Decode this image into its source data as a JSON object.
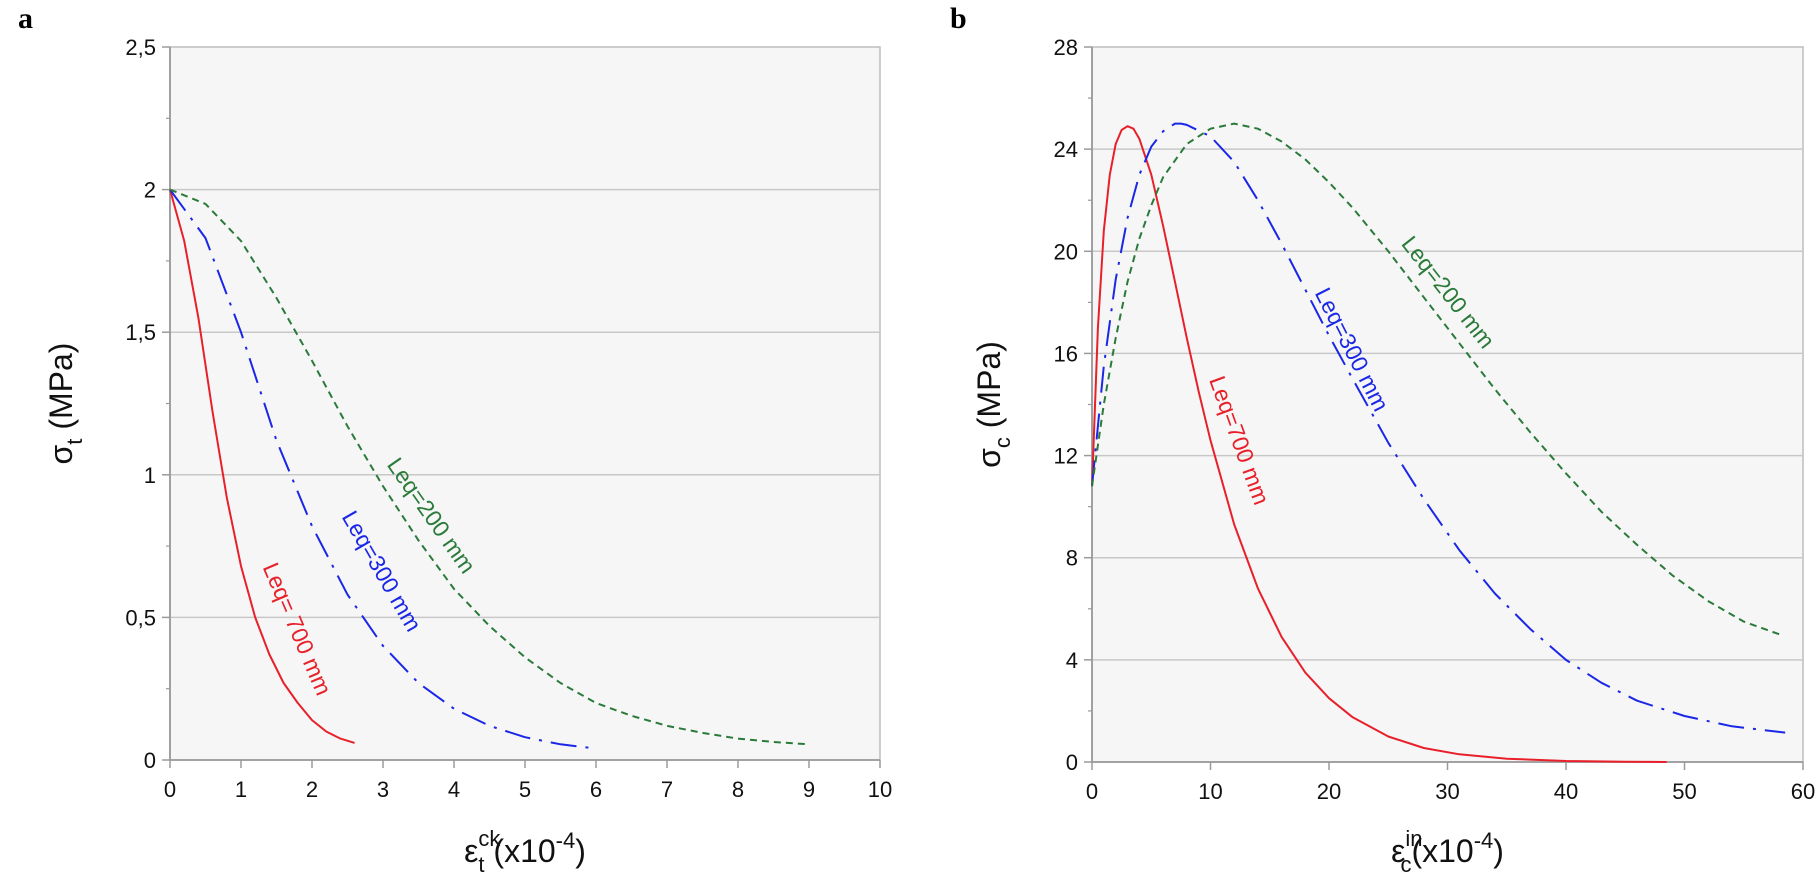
{
  "chart_data": [
    {
      "panel": "a",
      "type": "line",
      "xlim": [
        0,
        10
      ],
      "ylim": [
        0,
        2.5
      ],
      "xticks": [
        "0",
        "1",
        "2",
        "3",
        "4",
        "5",
        "6",
        "7",
        "8",
        "9",
        "10"
      ],
      "yticks": [
        "0",
        "0,5",
        "1",
        "1,5",
        "2",
        "2,5"
      ],
      "ylabel": {
        "main": "σ",
        "sub": "t",
        "unit": " (MPa)"
      },
      "xlabel": {
        "main": "ε",
        "sub": "t",
        "sup": "ck",
        "unit": " (x10",
        "exp": "-4",
        "close": ")"
      },
      "grid": true,
      "series": [
        {
          "name": "Leq= 700 mm",
          "color": "#e8202a",
          "dash": "solid",
          "x": [
            0,
            0.2,
            0.4,
            0.6,
            0.8,
            1.0,
            1.2,
            1.4,
            1.6,
            1.8,
            2.0,
            2.2,
            2.4,
            2.6
          ],
          "y": [
            2.0,
            1.82,
            1.55,
            1.22,
            0.92,
            0.68,
            0.5,
            0.37,
            0.27,
            0.2,
            0.14,
            0.1,
            0.075,
            0.06
          ]
        },
        {
          "name": "Leq=300 mm",
          "color": "#1a27e6",
          "dash": "dashdot",
          "x": [
            0,
            0.5,
            1.0,
            1.5,
            2.0,
            2.5,
            3.0,
            3.5,
            4.0,
            4.5,
            5.0,
            5.5,
            6.0
          ],
          "y": [
            2.0,
            1.83,
            1.5,
            1.12,
            0.82,
            0.58,
            0.4,
            0.27,
            0.18,
            0.12,
            0.08,
            0.055,
            0.04
          ]
        },
        {
          "name": "Leq=200 mm",
          "color": "#2a7a3a",
          "dash": "dashed",
          "x": [
            0,
            0.5,
            1.0,
            1.5,
            2.0,
            2.5,
            3.0,
            3.5,
            4.0,
            4.5,
            5.0,
            5.5,
            6.0,
            6.5,
            7.0,
            7.5,
            8.0,
            8.5,
            9.0
          ],
          "y": [
            2.0,
            1.95,
            1.82,
            1.62,
            1.4,
            1.17,
            0.96,
            0.77,
            0.6,
            0.47,
            0.36,
            0.27,
            0.2,
            0.155,
            0.12,
            0.095,
            0.075,
            0.063,
            0.055
          ]
        }
      ]
    },
    {
      "panel": "b",
      "type": "line",
      "xlim": [
        0,
        60
      ],
      "ylim": [
        0,
        28
      ],
      "xticks": [
        "0",
        "10",
        "20",
        "30",
        "40",
        "50",
        "60"
      ],
      "yticks": [
        "0",
        "4",
        "8",
        "12",
        "16",
        "20",
        "24",
        "28"
      ],
      "ylabel": {
        "main": "σ",
        "sub": "c",
        "unit": " (MPa)"
      },
      "xlabel": {
        "main": "ε",
        "sub": "c",
        "sup": "in",
        "unit": "(x10",
        "exp": "-4",
        "close": ")"
      },
      "grid": true,
      "series": [
        {
          "name": "Leq=700 mm",
          "color": "#e8202a",
          "dash": "solid",
          "x": [
            0,
            0.5,
            1.0,
            1.5,
            2.0,
            2.5,
            3.0,
            3.5,
            4.0,
            5.0,
            6.0,
            7.0,
            8.0,
            9.0,
            10.0,
            12.0,
            14.0,
            16.0,
            18.0,
            20.0,
            22.0,
            25.0,
            28.0,
            31.0,
            35.0,
            40.0,
            45.0,
            48.5
          ],
          "y": [
            10.8,
            17.0,
            20.8,
            23.0,
            24.2,
            24.75,
            24.9,
            24.8,
            24.4,
            23.0,
            21.0,
            18.8,
            16.6,
            14.5,
            12.6,
            9.3,
            6.8,
            4.9,
            3.5,
            2.5,
            1.75,
            1.0,
            0.55,
            0.3,
            0.13,
            0.04,
            0.01,
            0.0
          ]
        },
        {
          "name": "Leq=300 mm",
          "color": "#1a27e6",
          "dash": "dashdot",
          "x": [
            0,
            1.0,
            2.0,
            3.0,
            4.0,
            5.0,
            6.0,
            7.0,
            7.5,
            8.0,
            10.0,
            12.0,
            14.0,
            16.0,
            18.0,
            20.0,
            22.0,
            25.0,
            28.0,
            31.0,
            34.0,
            37.0,
            40.0,
            43.0,
            46.0,
            50.0,
            54.0,
            58.5
          ],
          "y": [
            10.8,
            15.5,
            18.9,
            21.3,
            23.0,
            24.1,
            24.7,
            25.0,
            25.0,
            24.95,
            24.5,
            23.5,
            22.0,
            20.3,
            18.5,
            16.7,
            15.0,
            12.5,
            10.3,
            8.3,
            6.6,
            5.2,
            4.0,
            3.1,
            2.4,
            1.8,
            1.4,
            1.15
          ]
        },
        {
          "name": "Leq=200 mm",
          "color": "#2a7a3a",
          "dash": "dashed",
          "x": [
            0,
            1.0,
            2.0,
            3.0,
            4.0,
            5.0,
            6.0,
            8.0,
            10.0,
            12.0,
            14.0,
            16.0,
            18.0,
            20.0,
            22.0,
            25.0,
            28.0,
            31.0,
            34.0,
            37.0,
            40.0,
            43.0,
            46.0,
            49.0,
            52.0,
            55.0,
            58.0
          ],
          "y": [
            10.8,
            14.0,
            16.6,
            18.8,
            20.5,
            21.8,
            22.9,
            24.2,
            24.8,
            25.0,
            24.8,
            24.3,
            23.6,
            22.7,
            21.7,
            20.0,
            18.2,
            16.4,
            14.6,
            12.9,
            11.3,
            9.8,
            8.5,
            7.3,
            6.3,
            5.5,
            5.0
          ]
        }
      ]
    }
  ]
}
